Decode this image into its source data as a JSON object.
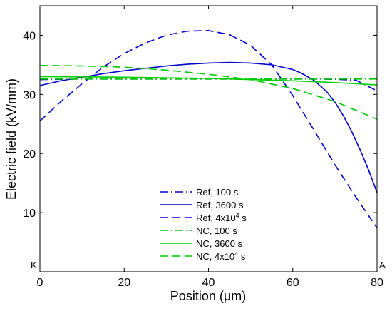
{
  "chart_data": {
    "type": "line",
    "xlabel": "Position (μm)",
    "ylabel": "Electric field (kV/mm)",
    "xlim": [
      0,
      80
    ],
    "ylim": [
      0,
      45
    ],
    "xticks": [
      0,
      20,
      40,
      60,
      80
    ],
    "yticks": [
      10,
      20,
      30,
      40
    ],
    "grid": false,
    "legend_placement": "bottom-center",
    "corner_labels": {
      "left": "K",
      "right": "A"
    },
    "series": [
      {
        "name": "Ref, 100 s",
        "color": "#0000cc",
        "dash": "dashdot",
        "x": [
          0,
          10,
          20,
          30,
          40,
          50,
          60,
          65,
          70,
          75,
          80
        ],
        "y": [
          32.5,
          32.6,
          32.6,
          32.6,
          32.6,
          32.6,
          32.6,
          32.6,
          32.55,
          32.4,
          30.6
        ]
      },
      {
        "name": "Ref, 3600 s",
        "color": "#0000cc",
        "dash": "solid",
        "x": [
          0,
          5,
          10,
          15,
          20,
          25,
          30,
          35,
          40,
          45,
          50,
          55,
          60,
          62,
          65,
          68,
          70,
          72,
          74,
          76,
          78,
          80
        ],
        "y": [
          31.5,
          32.3,
          32.9,
          33.5,
          34.0,
          34.4,
          34.8,
          35.1,
          35.3,
          35.4,
          35.3,
          35.0,
          34.2,
          33.6,
          32.4,
          30.5,
          28.7,
          26.4,
          23.7,
          20.6,
          17.2,
          13.4
        ]
      },
      {
        "name": "Ref, 4x10^4 s",
        "color": "#0000cc",
        "dash": "dashed",
        "x": [
          0,
          5,
          10,
          15,
          20,
          25,
          30,
          35,
          40,
          45,
          50,
          55,
          60,
          65,
          70,
          75,
          80
        ],
        "y": [
          25.5,
          28.8,
          31.8,
          34.6,
          36.9,
          38.7,
          40.0,
          40.7,
          40.8,
          40.1,
          38.3,
          35.0,
          29.8,
          24.0,
          18.1,
          12.6,
          7.4
        ]
      },
      {
        "name": "NC, 100 s",
        "color": "#00cc00",
        "dash": "dashdot",
        "x": [
          0,
          20,
          40,
          60,
          80
        ],
        "y": [
          32.6,
          32.6,
          32.6,
          32.6,
          32.6
        ]
      },
      {
        "name": "NC, 3600 s",
        "color": "#00cc00",
        "dash": "solid",
        "x": [
          0,
          10,
          20,
          30,
          40,
          50,
          60,
          70,
          80
        ],
        "y": [
          33.0,
          32.95,
          32.9,
          32.8,
          32.7,
          32.5,
          32.3,
          32.0,
          31.6
        ]
      },
      {
        "name": "NC, 4x10^4 s",
        "color": "#00cc00",
        "dash": "dashed",
        "x": [
          0,
          10,
          20,
          30,
          40,
          50,
          60,
          70,
          80
        ],
        "y": [
          34.9,
          34.8,
          34.6,
          34.1,
          33.4,
          32.5,
          31.0,
          28.8,
          25.8
        ]
      }
    ],
    "legend": [
      {
        "label": "Ref, 100 s"
      },
      {
        "label": "Ref, 3600 s"
      },
      {
        "label": "Ref, 4x10",
        "sup": "4",
        "suffix": " s"
      },
      {
        "label": "NC, 100 s"
      },
      {
        "label": "NC, 3600 s"
      },
      {
        "label": "NC, 4x10",
        "sup": "4",
        "suffix": " s"
      }
    ]
  }
}
